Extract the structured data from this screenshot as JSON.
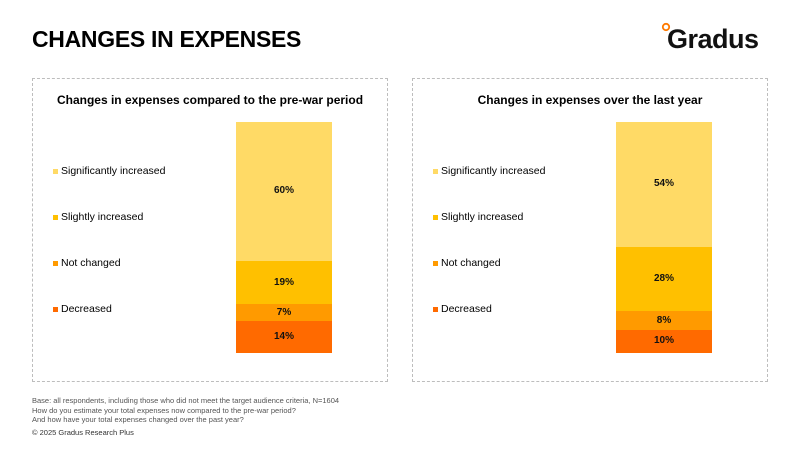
{
  "page": {
    "title": "CHANGES IN EXPENSES",
    "logo_text": "Gradus",
    "footnote_lines": [
      "Base: all respondents, including those who did not meet the target audience criteria, N=1604",
      "How do you estimate your total expenses now compared to the pre-war period?",
      "And how have your total expenses changed over the past year?"
    ],
    "copyright": "© 2025 Gradus Research Plus"
  },
  "colors": {
    "significantly_increased": "#FFDA66",
    "slightly_increased": "#FFC000",
    "not_changed": "#FF9A00",
    "decreased": "#FF6A00",
    "logo_accent": "#FF7A00"
  },
  "chart_data": [
    {
      "type": "bar",
      "stacked": true,
      "title": "Changes in expenses compared to the pre-war period",
      "legend_position": "left",
      "series": [
        {
          "name": "Significantly increased",
          "values": [
            60
          ],
          "color": "#FFDA66",
          "label": "60%"
        },
        {
          "name": "Slightly increased",
          "values": [
            19
          ],
          "color": "#FFC000",
          "label": "19%"
        },
        {
          "name": "Not changed",
          "values": [
            7
          ],
          "color": "#FF9A00",
          "label": "7%"
        },
        {
          "name": "Decreased",
          "values": [
            14
          ],
          "color": "#FF6A00",
          "label": "14%"
        }
      ],
      "ylim": [
        0,
        100
      ],
      "grid": false
    },
    {
      "type": "bar",
      "stacked": true,
      "title": "Changes in expenses over the last year",
      "legend_position": "left",
      "series": [
        {
          "name": "Significantly increased",
          "values": [
            54
          ],
          "color": "#FFDA66",
          "label": "54%"
        },
        {
          "name": "Slightly increased",
          "values": [
            28
          ],
          "color": "#FFC000",
          "label": "28%"
        },
        {
          "name": "Not changed",
          "values": [
            8
          ],
          "color": "#FF9A00",
          "label": "8%"
        },
        {
          "name": "Decreased",
          "values": [
            10
          ],
          "color": "#FF6A00",
          "label": "10%"
        }
      ],
      "ylim": [
        0,
        100
      ],
      "grid": false
    }
  ]
}
